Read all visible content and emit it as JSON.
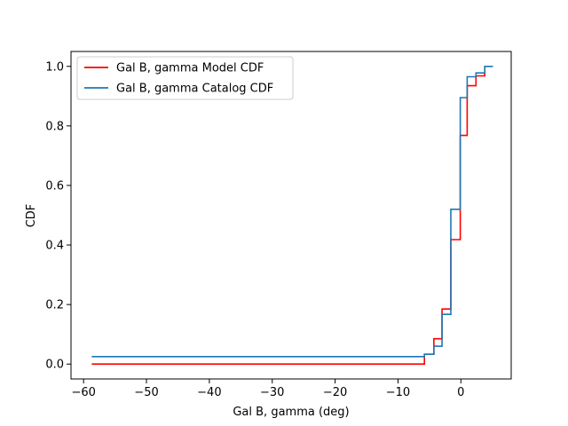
{
  "chart_data": {
    "type": "line",
    "step": "post",
    "xlabel": "Gal B, gamma (deg)",
    "ylabel": "CDF",
    "xlim": [
      -62,
      8
    ],
    "ylim": [
      -0.05,
      1.05
    ],
    "xticks": [
      -60,
      -50,
      -40,
      -30,
      -20,
      -10,
      0
    ],
    "xtick_labels": [
      "−60",
      "−50",
      "−40",
      "−30",
      "−20",
      "−10",
      "0"
    ],
    "yticks": [
      0.0,
      0.2,
      0.4,
      0.6,
      0.8,
      1.0
    ],
    "ytick_labels": [
      "0.0",
      "0.2",
      "0.4",
      "0.6",
      "0.8",
      "1.0"
    ],
    "grid": false,
    "legend_position": "upper-left",
    "series": [
      {
        "name": "Gal B, gamma Model CDF",
        "color": "#ff0000",
        "x": [
          -58.7,
          -5.8,
          -4.3,
          -3.0,
          -1.6,
          -0.1,
          1.0,
          2.4,
          3.8
        ],
        "y": [
          0.0,
          0.033,
          0.085,
          0.185,
          0.418,
          0.768,
          0.935,
          0.968,
          1.0
        ]
      },
      {
        "name": "Gal B, gamma Catalog CDF",
        "color": "#1f77b4",
        "x": [
          -58.7,
          -5.8,
          -4.3,
          -3.0,
          -1.6,
          -0.1,
          1.0,
          2.4,
          3.8,
          5.1
        ],
        "y": [
          0.025,
          0.033,
          0.06,
          0.167,
          0.52,
          0.895,
          0.965,
          0.978,
          1.0,
          1.0
        ]
      }
    ]
  }
}
